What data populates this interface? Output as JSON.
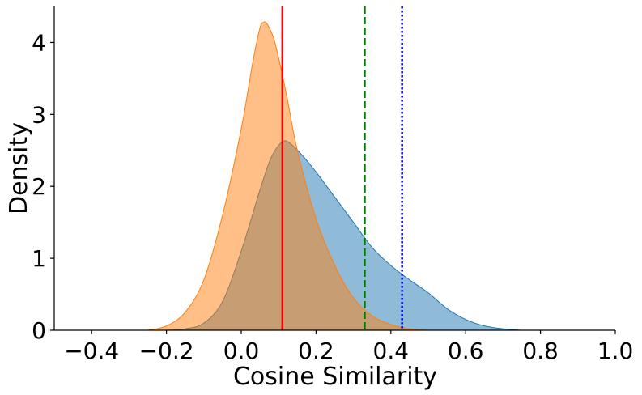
{
  "chart_data": {
    "type": "area",
    "title": "",
    "xlabel": "Cosine Similarity",
    "ylabel": "Density",
    "xlim": [
      -0.5,
      1.0
    ],
    "ylim": [
      0,
      4.5
    ],
    "xticks": [
      -0.4,
      -0.2,
      0.0,
      0.2,
      0.4,
      0.6,
      0.8,
      1.0
    ],
    "xtick_labels": [
      "−0.4",
      "−0.2",
      "0.0",
      "0.2",
      "0.4",
      "0.6",
      "0.8",
      "1.0"
    ],
    "yticks": [
      0,
      1,
      2,
      3,
      4
    ],
    "ytick_labels": [
      "0",
      "1",
      "2",
      "3",
      "4"
    ],
    "grid": false,
    "legend": "none",
    "series": [
      {
        "color": "#1f77b4",
        "x": [
          -0.2,
          -0.15,
          -0.1,
          -0.05,
          0.0,
          0.05,
          0.08,
          0.11,
          0.13,
          0.16,
          0.2,
          0.25,
          0.3,
          0.35,
          0.4,
          0.45,
          0.5,
          0.55,
          0.6,
          0.65,
          0.7,
          0.75
        ],
        "y": [
          0.0,
          0.02,
          0.1,
          0.4,
          1.1,
          1.95,
          2.4,
          2.62,
          2.6,
          2.45,
          2.2,
          1.85,
          1.5,
          1.15,
          0.9,
          0.7,
          0.52,
          0.3,
          0.15,
          0.06,
          0.02,
          0.0
        ]
      },
      {
        "color": "#ff7f0e",
        "x": [
          -0.25,
          -0.2,
          -0.15,
          -0.1,
          -0.05,
          0.0,
          0.03,
          0.05,
          0.06,
          0.07,
          0.09,
          0.12,
          0.15,
          0.2,
          0.25,
          0.3,
          0.35,
          0.4,
          0.45,
          0.5
        ],
        "y": [
          0.0,
          0.06,
          0.25,
          0.7,
          1.6,
          2.8,
          3.7,
          4.2,
          4.28,
          4.25,
          4.0,
          3.3,
          2.5,
          1.55,
          0.9,
          0.45,
          0.2,
          0.08,
          0.02,
          0.0
        ]
      }
    ],
    "reference_lines": [
      {
        "x": 0.11,
        "color": "#ff0000",
        "style": "solid"
      },
      {
        "x": 0.33,
        "color": "#008000",
        "style": "dashed"
      },
      {
        "x": 0.43,
        "color": "#0000ff",
        "style": "dotted"
      }
    ]
  }
}
